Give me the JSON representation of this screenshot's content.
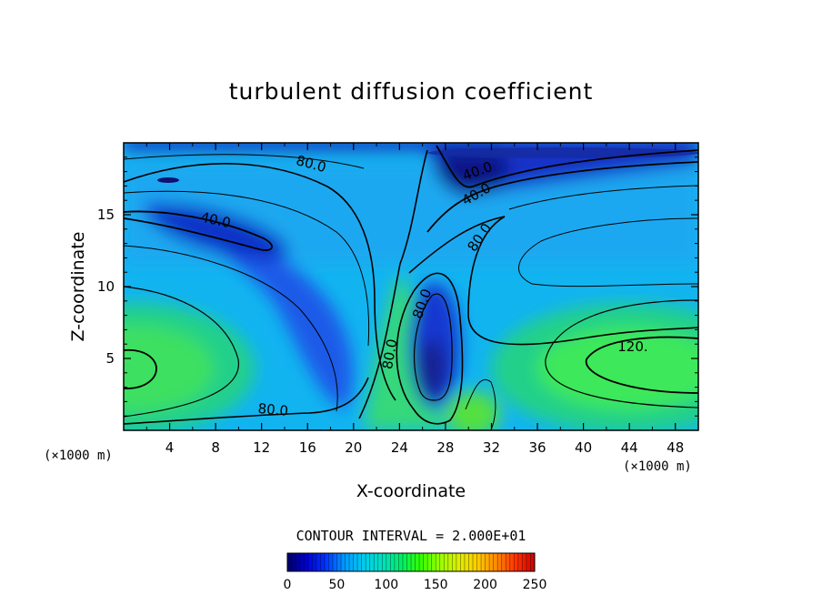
{
  "chart_data": {
    "type": "heatmap",
    "title": "turbulent diffusion coefficient",
    "xlabel": "X-coordinate",
    "ylabel": "Z-coordinate",
    "x_unit": "(×1000 m)",
    "y_unit": "(×1000 m)",
    "xlim": [
      0,
      50
    ],
    "ylim": [
      0,
      20
    ],
    "x_ticks": [
      4,
      8,
      12,
      16,
      20,
      24,
      28,
      32,
      36,
      40,
      44,
      48
    ],
    "y_ticks": [
      5,
      10,
      15
    ],
    "contour_interval_text": "CONTOUR INTERVAL = 2.000E+01",
    "contour_labels": [
      {
        "text": "80.0",
        "x": 16.3,
        "z": 18.5,
        "angle": 15
      },
      {
        "text": "40.0",
        "x": 30.8,
        "z": 18.0,
        "angle": -20
      },
      {
        "text": "40.0",
        "x": 30.7,
        "z": 16.4,
        "angle": -30
      },
      {
        "text": "40.0",
        "x": 8.0,
        "z": 14.6,
        "angle": 12
      },
      {
        "text": "80.0",
        "x": 31.0,
        "z": 13.4,
        "angle": -55
      },
      {
        "text": "80.0",
        "x": 26.0,
        "z": 8.8,
        "angle": -70
      },
      {
        "text": "80.0",
        "x": 23.2,
        "z": 5.3,
        "angle": -80
      },
      {
        "text": "120.",
        "x": 44.3,
        "z": 5.8,
        "angle": 0
      },
      {
        "text": "80.0",
        "x": 13.0,
        "z": 1.4,
        "angle": 5
      }
    ],
    "colorbar": {
      "min": 0,
      "max": 250,
      "tick_values": [
        0,
        50,
        100,
        150,
        200,
        250
      ],
      "tick_labels": [
        "0",
        "50",
        "100",
        "150",
        "200",
        "250"
      ],
      "colors": [
        "#000066",
        "#0000cc",
        "#0033ff",
        "#0099ff",
        "#00ccee",
        "#00e0c0",
        "#00ee66",
        "#33ff00",
        "#99ff00",
        "#ddee00",
        "#ffcc00",
        "#ff8800",
        "#ff3300",
        "#cc0000"
      ]
    },
    "regions": [
      {
        "name": "left-low-max",
        "x": 2,
        "z": 4.3,
        "value": 135
      },
      {
        "name": "right-low-max",
        "x": 44,
        "z": 4.3,
        "value": 138
      },
      {
        "name": "left-upper-min",
        "x": 9,
        "z": 14.2,
        "value": 35
      },
      {
        "name": "top-right-min",
        "x": 31,
        "z": 18.6,
        "value": 20
      },
      {
        "name": "center-plume-min",
        "x": 26.5,
        "z": 4,
        "value": 45
      },
      {
        "name": "background",
        "value": 95
      }
    ]
  }
}
